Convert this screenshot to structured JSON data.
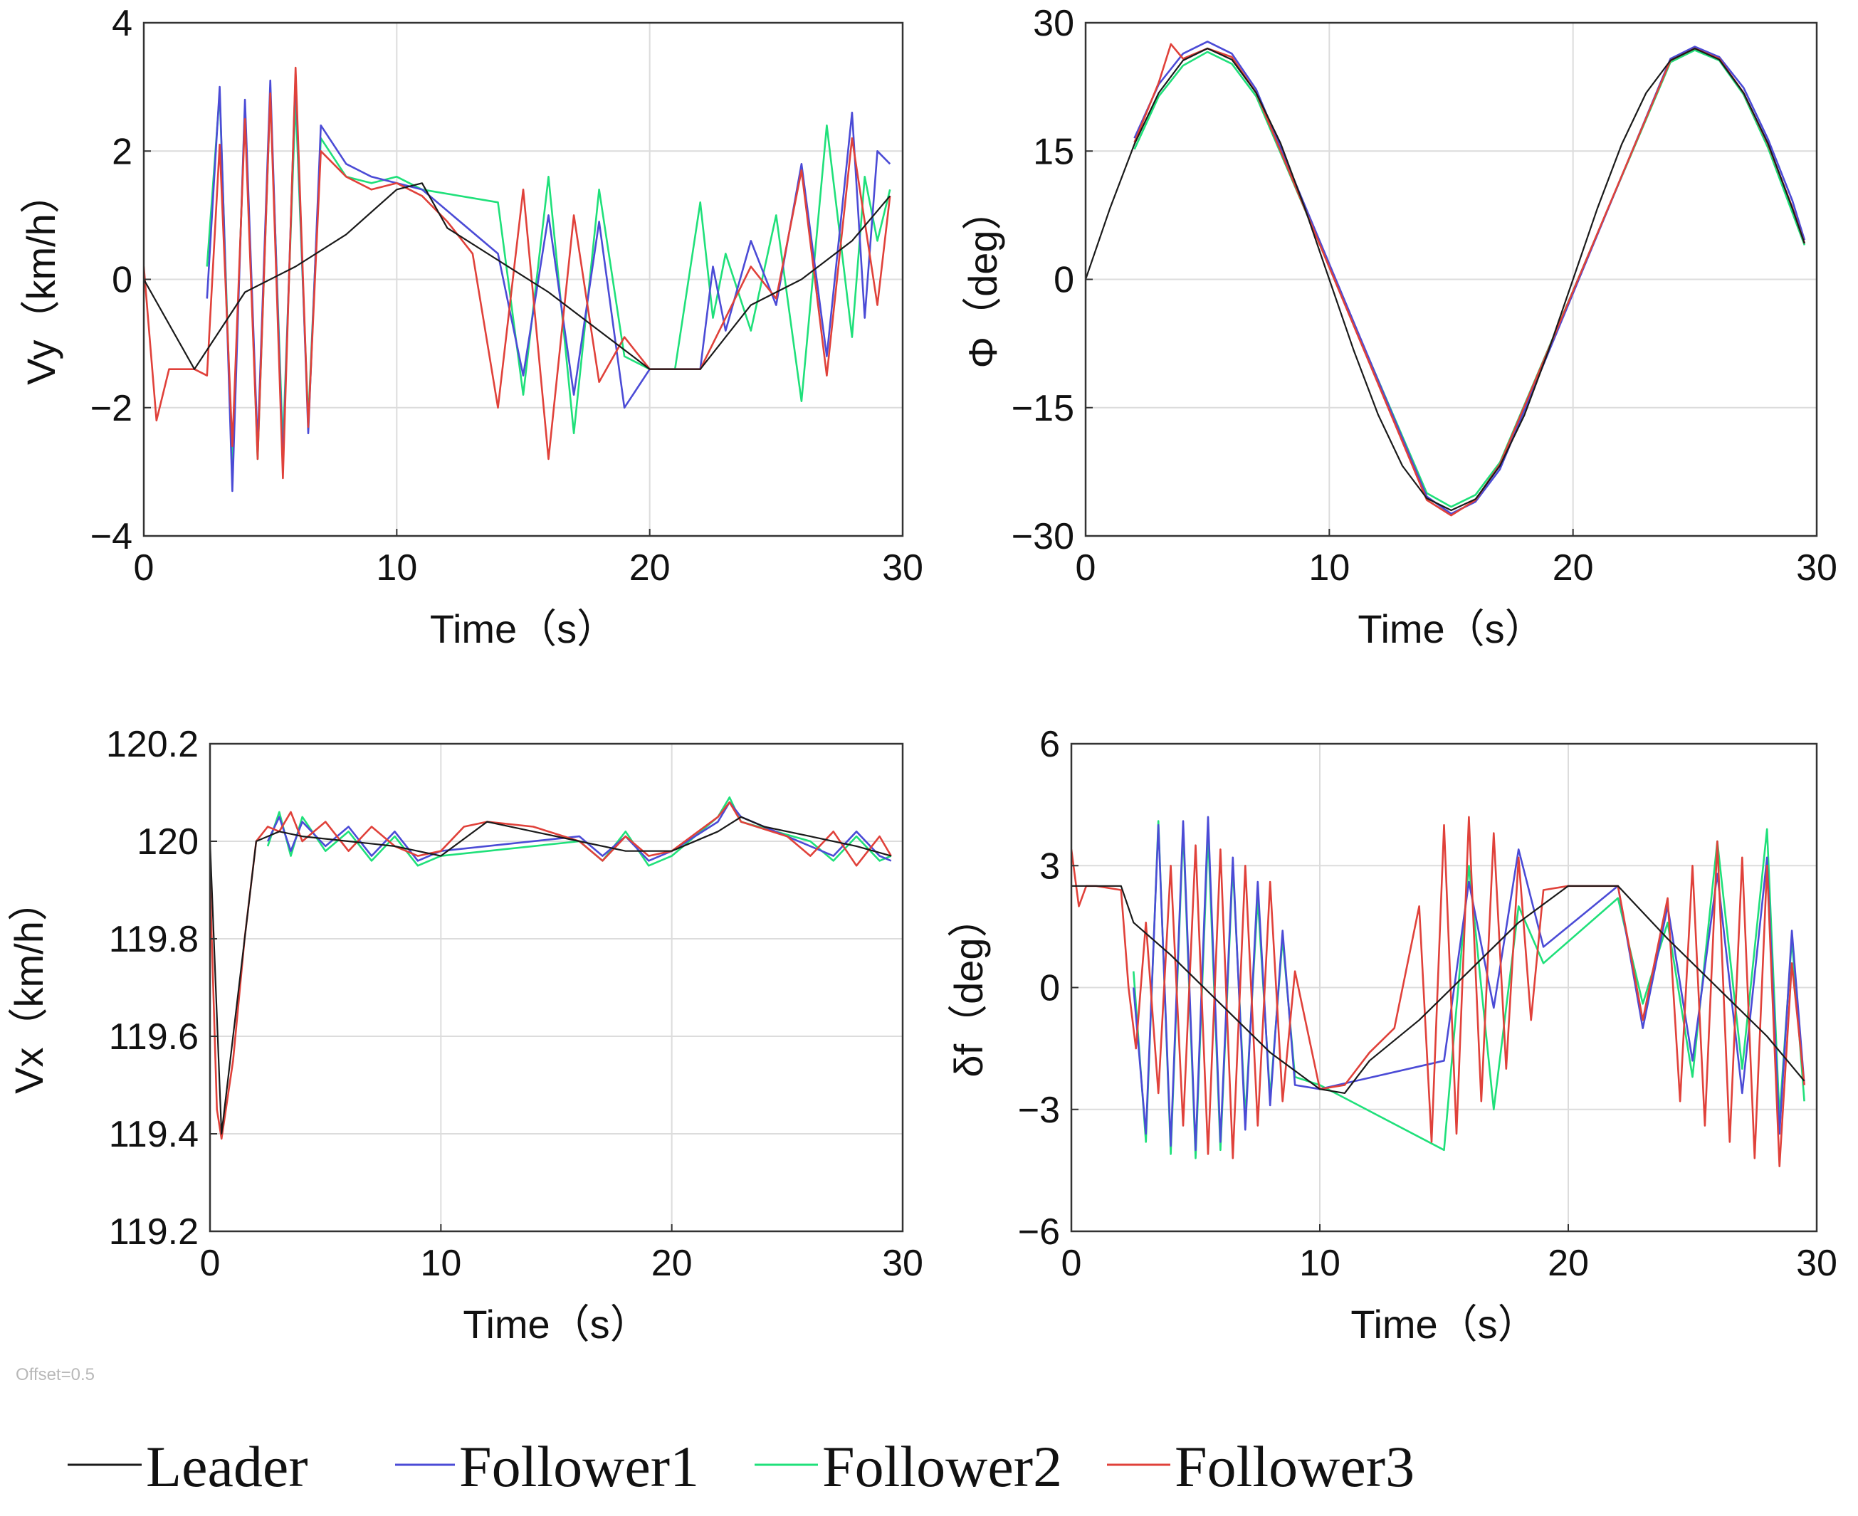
{
  "note": "Offset=0.5",
  "legend": [
    {
      "name": "Leader",
      "color": "#1a1a1a"
    },
    {
      "name": "Follower1",
      "color": "#4b4bd6"
    },
    {
      "name": "Follower2",
      "color": "#1fe07a"
    },
    {
      "name": "Follower3",
      "color": "#e0413a"
    }
  ],
  "chart_data": [
    {
      "id": "vy",
      "type": "line",
      "ylabel": "Vy（km/h）",
      "xlabel": "Time（s）",
      "xlim": [
        0,
        30
      ],
      "ylim": [
        -4,
        4
      ],
      "xticks": [
        0,
        10,
        20,
        30
      ],
      "yticks": [
        -4,
        -2,
        0,
        2,
        4
      ],
      "xtick_labels": [
        "0",
        "10",
        "20",
        "30"
      ],
      "ytick_labels": [
        "−4",
        "−2",
        "0",
        "2",
        "4"
      ],
      "grid": true,
      "series": [
        {
          "name": "Leader",
          "x": [
            0,
            2,
            4,
            6,
            8,
            10,
            11,
            12,
            14,
            16,
            18,
            20,
            22,
            24,
            26,
            28,
            29.5
          ],
          "y": [
            0,
            -1.4,
            -0.2,
            0.2,
            0.7,
            1.4,
            1.5,
            0.8,
            0.3,
            -0.2,
            -0.8,
            -1.4,
            -1.4,
            -0.4,
            0,
            0.6,
            1.3
          ]
        },
        {
          "name": "Follower1",
          "x": [
            2.5,
            3,
            3.5,
            4,
            4.5,
            5,
            5.5,
            6,
            6.5,
            7,
            8,
            9,
            10,
            11,
            14,
            15,
            16,
            17,
            18,
            19,
            20,
            21,
            22,
            22.5,
            23,
            24,
            25,
            26,
            27,
            28,
            28.5,
            29,
            29.5
          ],
          "y": [
            -0.3,
            3.0,
            -3.3,
            2.8,
            -2.6,
            3.1,
            -2.9,
            3.2,
            -2.4,
            2.4,
            1.8,
            1.6,
            1.5,
            1.4,
            0.4,
            -1.5,
            1.0,
            -1.8,
            0.9,
            -2.0,
            -1.4,
            -1.4,
            -1.4,
            0.2,
            -0.8,
            0.6,
            -0.4,
            1.8,
            -1.2,
            2.6,
            -0.6,
            2.0,
            1.8
          ]
        },
        {
          "name": "Follower2",
          "x": [
            2.5,
            3,
            3.5,
            4,
            4.5,
            5,
            5.5,
            6,
            6.5,
            7,
            8,
            9,
            10,
            11,
            14,
            15,
            16,
            17,
            18,
            19,
            20,
            21,
            22,
            22.5,
            23,
            24,
            25,
            26,
            27,
            28,
            28.5,
            29,
            29.5
          ],
          "y": [
            0.2,
            2.9,
            -3.0,
            2.7,
            -2.8,
            2.9,
            -2.6,
            2.8,
            -2.2,
            2.2,
            1.6,
            1.5,
            1.6,
            1.4,
            1.2,
            -1.8,
            1.6,
            -2.4,
            1.4,
            -1.2,
            -1.4,
            -1.4,
            1.2,
            -0.6,
            0.4,
            -0.8,
            1.0,
            -1.9,
            2.4,
            -0.9,
            1.6,
            0.6,
            1.4
          ]
        },
        {
          "name": "Follower3",
          "x": [
            0,
            0.5,
            1,
            1.5,
            2,
            2.5,
            3,
            3.5,
            4,
            4.5,
            5,
            5.5,
            6,
            6.5,
            7,
            8,
            9,
            10,
            11,
            12,
            13,
            14,
            15,
            16,
            17,
            18,
            19,
            20,
            21,
            22,
            23,
            24,
            25,
            26,
            27,
            28,
            29,
            29.5
          ],
          "y": [
            0.2,
            -2.2,
            -1.4,
            -1.4,
            -1.4,
            -1.5,
            2.1,
            -2.6,
            2.5,
            -2.8,
            2.9,
            -3.1,
            3.3,
            -2.3,
            2.0,
            1.6,
            1.4,
            1.5,
            1.3,
            0.9,
            0.4,
            -2.0,
            1.4,
            -2.8,
            1.0,
            -1.6,
            -0.9,
            -1.4,
            -1.4,
            -1.4,
            -0.6,
            0.2,
            -0.3,
            1.7,
            -1.5,
            2.2,
            -0.4,
            1.3
          ]
        }
      ]
    },
    {
      "id": "phi",
      "type": "line",
      "ylabel": "Φ（deg）",
      "xlabel": "Time（s）",
      "xlim": [
        0,
        30
      ],
      "ylim": [
        -30,
        30
      ],
      "xticks": [
        0,
        10,
        20,
        30
      ],
      "yticks": [
        -30,
        -15,
        0,
        15,
        30
      ],
      "xtick_labels": [
        "0",
        "10",
        "20",
        "30"
      ],
      "ytick_labels": [
        "−30",
        "−15",
        "0",
        "15",
        "30"
      ],
      "grid": true,
      "series": [
        {
          "name": "Leader",
          "x": [
            0,
            1,
            2,
            3,
            4,
            5,
            6,
            7,
            8,
            9,
            10,
            11,
            12,
            13,
            14,
            15,
            16,
            17,
            18,
            19,
            20,
            21,
            22,
            23,
            24,
            25,
            26,
            27,
            28,
            29,
            29.5
          ],
          "y": [
            0,
            8.3,
            15.8,
            21.8,
            25.6,
            27,
            25.7,
            21.8,
            15.9,
            8.3,
            0,
            -8.3,
            -15.8,
            -21.8,
            -25.6,
            -27,
            -25.7,
            -21.8,
            -15.9,
            -8.3,
            0,
            8.3,
            15.8,
            21.8,
            25.6,
            27,
            25.7,
            21.8,
            15.9,
            8.3,
            4.2
          ]
        },
        {
          "name": "Follower1",
          "x": [
            2,
            3,
            4,
            5,
            6,
            7,
            14,
            15,
            16,
            17,
            24,
            25,
            26,
            27,
            28,
            29,
            29.5
          ],
          "y": [
            16.5,
            22.8,
            26.4,
            27.8,
            26.4,
            22.2,
            -25.4,
            -27.4,
            -26.0,
            -22.2,
            25.8,
            27.2,
            26.0,
            22.4,
            16.4,
            9.2,
            4.6
          ]
        },
        {
          "name": "Follower2",
          "x": [
            2,
            3,
            4,
            5,
            6,
            7,
            14,
            15,
            16,
            17,
            24,
            25,
            26,
            27,
            28,
            29,
            29.5
          ],
          "y": [
            15.2,
            21.4,
            25.0,
            26.6,
            25.2,
            21.4,
            -25.0,
            -26.6,
            -25.2,
            -21.4,
            25.4,
            26.8,
            25.6,
            21.6,
            15.4,
            7.8,
            4.0
          ]
        },
        {
          "name": "Follower3",
          "x": [
            2,
            3,
            3.5,
            4,
            5,
            6,
            7,
            14,
            15,
            16,
            17,
            24,
            25,
            26,
            27,
            28,
            29,
            29.5
          ],
          "y": [
            16.0,
            23.0,
            27.5,
            25.8,
            27.0,
            26.0,
            21.8,
            -25.8,
            -27.6,
            -25.8,
            -21.6,
            25.6,
            27.0,
            25.8,
            21.8,
            15.8,
            8.4,
            4.2
          ]
        }
      ]
    },
    {
      "id": "vx",
      "type": "line",
      "ylabel": "Vx（km/h）",
      "xlabel": "Time（s）",
      "xlim": [
        0,
        30
      ],
      "ylim": [
        119.2,
        120.2
      ],
      "xticks": [
        0,
        10,
        20,
        30
      ],
      "yticks": [
        119.2,
        119.4,
        119.6,
        119.8,
        120,
        120.2
      ],
      "xtick_labels": [
        "0",
        "10",
        "20",
        "30"
      ],
      "ytick_labels": [
        "119.2",
        "119.4",
        "119.6",
        "119.8",
        "120",
        "120.2"
      ],
      "grid": true,
      "series": [
        {
          "name": "Leader",
          "x": [
            0,
            0.5,
            1,
            2,
            3,
            4,
            6,
            8,
            10,
            12,
            14,
            16,
            18,
            20,
            22,
            23,
            24,
            26,
            28,
            29.5
          ],
          "y": [
            120,
            119.4,
            119.6,
            120.0,
            120.02,
            120.01,
            120.0,
            119.99,
            119.97,
            120.04,
            120.02,
            120.0,
            119.98,
            119.98,
            120.02,
            120.05,
            120.03,
            120.01,
            119.99,
            119.97
          ]
        },
        {
          "name": "Follower1",
          "x": [
            2.5,
            3,
            3.5,
            4,
            5,
            6,
            7,
            8,
            9,
            10,
            16,
            17,
            18,
            19,
            20,
            22,
            22.5,
            23,
            26,
            27,
            28,
            29,
            29.5
          ],
          "y": [
            120.0,
            120.05,
            119.98,
            120.04,
            119.99,
            120.03,
            119.97,
            120.02,
            119.96,
            119.98,
            120.01,
            119.97,
            120.01,
            119.96,
            119.98,
            120.04,
            120.08,
            120.05,
            119.99,
            119.97,
            120.02,
            119.97,
            119.96
          ]
        },
        {
          "name": "Follower2",
          "x": [
            2.5,
            3,
            3.5,
            4,
            5,
            6,
            7,
            8,
            9,
            10,
            16,
            17,
            18,
            19,
            20,
            22,
            22.5,
            23,
            26,
            27,
            28,
            29,
            29.5
          ],
          "y": [
            119.99,
            120.06,
            119.97,
            120.05,
            119.98,
            120.02,
            119.96,
            120.01,
            119.95,
            119.97,
            120.0,
            119.96,
            120.02,
            119.95,
            119.97,
            120.05,
            120.09,
            120.04,
            120.0,
            119.96,
            120.01,
            119.96,
            119.97
          ]
        },
        {
          "name": "Follower3",
          "x": [
            0,
            0.3,
            0.5,
            1,
            1.5,
            2,
            2.5,
            3,
            3.5,
            4,
            5,
            6,
            7,
            8,
            9,
            10,
            11,
            12,
            14,
            16,
            17,
            18,
            19,
            20,
            22,
            22.5,
            23,
            25,
            26,
            27,
            28,
            29,
            29.5
          ],
          "y": [
            119.92,
            119.45,
            119.39,
            119.55,
            119.8,
            120.0,
            120.03,
            120.02,
            120.06,
            120.0,
            120.04,
            119.98,
            120.03,
            119.99,
            119.97,
            119.98,
            120.03,
            120.04,
            120.03,
            120.0,
            119.96,
            120.01,
            119.97,
            119.98,
            120.05,
            120.08,
            120.04,
            120.01,
            119.97,
            120.02,
            119.95,
            120.01,
            119.97
          ]
        }
      ]
    },
    {
      "id": "df",
      "type": "line",
      "ylabel": "δf（deg）",
      "xlabel": "Time（s）",
      "xlim": [
        0,
        30
      ],
      "ylim": [
        -6,
        6
      ],
      "xticks": [
        0,
        10,
        20,
        30
      ],
      "yticks": [
        -6,
        -3,
        0,
        3,
        6
      ],
      "xtick_labels": [
        "0",
        "10",
        "20",
        "30"
      ],
      "ytick_labels": [
        "−6",
        "−3",
        "0",
        "3",
        "6"
      ],
      "grid": true,
      "series": [
        {
          "name": "Leader",
          "x": [
            0,
            2,
            2.5,
            4,
            6,
            8,
            10,
            11,
            12,
            14,
            16,
            18,
            20,
            22,
            24,
            26,
            28,
            29.5
          ],
          "y": [
            2.5,
            2.5,
            1.6,
            0.8,
            -0.4,
            -1.6,
            -2.5,
            -2.6,
            -1.8,
            -0.8,
            0.4,
            1.6,
            2.5,
            2.5,
            1.2,
            0,
            -1.2,
            -2.3
          ]
        },
        {
          "name": "Follower1",
          "x": [
            2.5,
            3,
            3.5,
            4,
            4.5,
            5,
            5.5,
            6,
            6.5,
            7,
            7.5,
            8,
            8.5,
            9,
            10,
            15,
            16,
            17,
            18,
            19,
            22,
            23,
            24,
            25,
            26,
            27,
            28,
            28.5,
            29,
            29.5
          ],
          "y": [
            0,
            -3.6,
            4.0,
            -3.9,
            4.1,
            -4.0,
            4.2,
            -3.8,
            3.2,
            -3.5,
            2.6,
            -2.9,
            1.4,
            -2.4,
            -2.5,
            -1.8,
            2.6,
            -0.5,
            3.4,
            1.0,
            2.5,
            -1.0,
            2.0,
            -1.8,
            2.8,
            -2.6,
            3.2,
            -3.6,
            1.4,
            -2.4
          ]
        },
        {
          "name": "Follower2",
          "x": [
            2.5,
            3,
            3.5,
            4,
            4.5,
            5,
            5.5,
            6,
            6.5,
            7,
            7.5,
            8,
            8.5,
            9,
            10,
            15,
            16,
            17,
            18,
            19,
            22,
            23,
            24,
            25,
            26,
            27,
            28,
            28.5,
            29,
            29.5
          ],
          "y": [
            0.4,
            -3.8,
            4.1,
            -4.1,
            3.9,
            -4.2,
            3.8,
            -4.0,
            3.0,
            -3.2,
            2.2,
            -2.7,
            1.2,
            -2.2,
            -2.4,
            -4.0,
            3.0,
            -3.0,
            2.0,
            0.6,
            2.2,
            -0.4,
            1.6,
            -2.2,
            3.6,
            -2.0,
            3.9,
            -3.2,
            1.2,
            -2.8
          ]
        },
        {
          "name": "Follower3",
          "x": [
            0,
            0.3,
            0.6,
            1,
            2,
            2.3,
            2.6,
            3,
            3.5,
            4,
            4.5,
            5,
            5.5,
            6,
            6.5,
            7,
            7.5,
            8,
            8.5,
            9,
            10,
            11,
            12,
            13,
            14,
            14.5,
            15,
            15.5,
            16,
            16.5,
            17,
            17.5,
            18,
            18.5,
            19,
            20,
            22,
            23,
            24,
            24.5,
            25,
            25.5,
            26,
            26.5,
            27,
            27.5,
            28,
            28.5,
            29,
            29.5
          ],
          "y": [
            3.4,
            2.0,
            2.5,
            2.5,
            2.4,
            0.0,
            -1.5,
            1.6,
            -2.6,
            3.0,
            -3.4,
            3.5,
            -4.1,
            3.4,
            -4.2,
            3.0,
            -3.4,
            2.6,
            -2.8,
            0.4,
            -2.5,
            -2.4,
            -1.6,
            -1.0,
            2.0,
            -3.8,
            4.0,
            -3.6,
            4.2,
            -2.8,
            3.8,
            -2.0,
            3.2,
            -0.8,
            2.4,
            2.5,
            2.5,
            -0.8,
            2.2,
            -2.8,
            3.0,
            -3.4,
            3.6,
            -3.8,
            3.2,
            -4.2,
            3.0,
            -4.4,
            0.6,
            -2.4
          ]
        }
      ]
    }
  ]
}
